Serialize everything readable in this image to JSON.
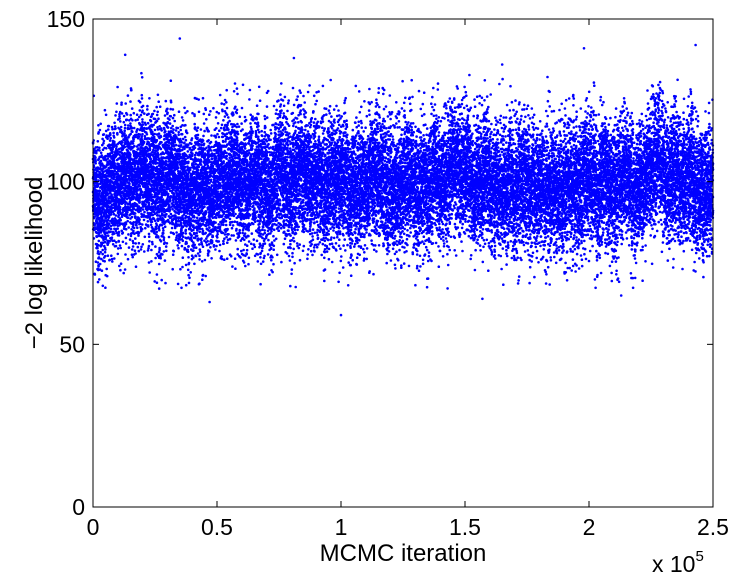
{
  "chart_data": {
    "type": "scatter",
    "title": "",
    "xlabel": "MCMC iteration",
    "ylabel": "−2 log likelihood",
    "x_multiplier_label": {
      "base": "x 10",
      "exponent": "5"
    },
    "xlim": [
      0,
      250000
    ],
    "ylim": [
      0,
      150
    ],
    "x_ticks": [
      0,
      50000,
      100000,
      150000,
      200000,
      250000
    ],
    "x_tick_labels": [
      "0",
      "0.5",
      "1",
      "1.5",
      "2",
      "2.5"
    ],
    "y_ticks": [
      0,
      50,
      100,
      150
    ],
    "y_tick_labels": [
      "0",
      "50",
      "100",
      "150"
    ],
    "grid": false,
    "marker_color": "#0000ff",
    "series": [
      {
        "n_points": 25000,
        "x_range": [
          0,
          250000
        ],
        "mean": 100,
        "std": 10,
        "min": 59,
        "max": 144,
        "extreme_points": [
          {
            "x": 35000,
            "y": 144
          },
          {
            "x": 13000,
            "y": 139
          },
          {
            "x": 198000,
            "y": 141
          },
          {
            "x": 243000,
            "y": 142
          },
          {
            "x": 81000,
            "y": 138
          },
          {
            "x": 165000,
            "y": 136
          },
          {
            "x": 100000,
            "y": 59
          },
          {
            "x": 47000,
            "y": 63
          },
          {
            "x": 157000,
            "y": 64
          },
          {
            "x": 213000,
            "y": 65
          }
        ]
      }
    ]
  }
}
